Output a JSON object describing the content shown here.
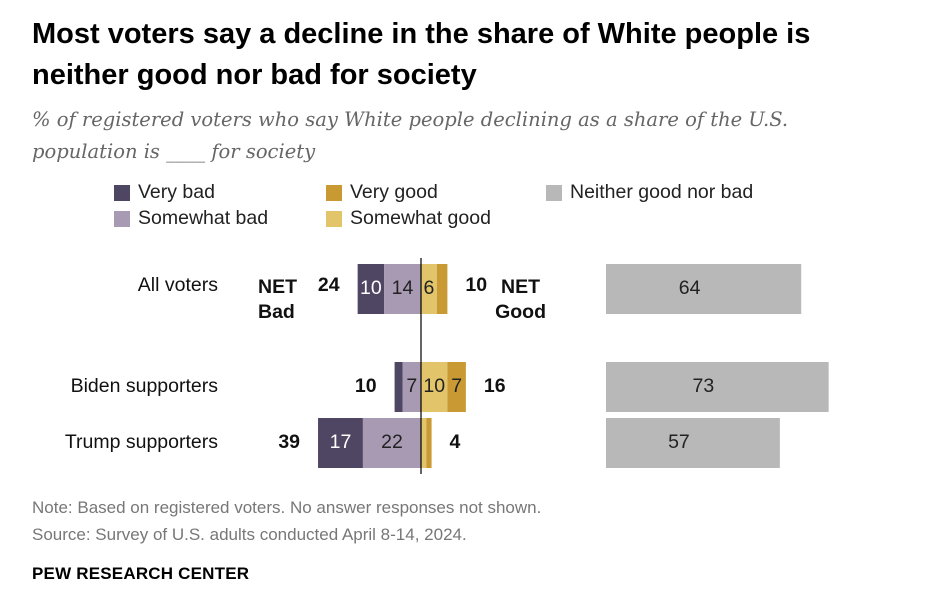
{
  "title": "Most voters say a decline in the share of White people is neither good nor bad for society",
  "subtitle": "% of registered voters who say White people declining as a share of the U.S. population is ____ for society",
  "legend": [
    {
      "label": "Very bad",
      "color": "#4f4663"
    },
    {
      "label": "Very good",
      "color": "#c99a33"
    },
    {
      "label": "Neither good nor bad",
      "color": "#b8b8b8"
    },
    {
      "label": "Somewhat bad",
      "color": "#a89ab3"
    },
    {
      "label": "Somewhat good",
      "color": "#e2c46a"
    }
  ],
  "net_labels": {
    "bad": "NET Bad",
    "good": "NET Good"
  },
  "chart_data": {
    "type": "bar",
    "stacked": "diverging",
    "categories": [
      "All voters",
      "Biden supporters",
      "Trump supporters"
    ],
    "series": [
      {
        "name": "Very bad",
        "values": [
          10,
          3,
          17
        ],
        "color": "#4f4663"
      },
      {
        "name": "Somewhat bad",
        "values": [
          14,
          7,
          22
        ],
        "color": "#a89ab3"
      },
      {
        "name": "Somewhat good",
        "values": [
          6,
          10,
          2
        ],
        "color": "#e2c46a"
      },
      {
        "name": "Very good",
        "values": [
          4,
          7,
          2
        ],
        "color": "#c99a33"
      },
      {
        "name": "Neither good nor bad",
        "values": [
          64,
          73,
          57
        ],
        "color": "#b8b8b8"
      }
    ],
    "segment_labels": [
      [
        "10",
        "14",
        "6",
        "",
        "64"
      ],
      [
        "",
        "7",
        "10",
        "7",
        "73"
      ],
      [
        "17",
        "22",
        "",
        "",
        "57"
      ]
    ],
    "net_bad": [
      24,
      10,
      39
    ],
    "net_good": [
      10,
      16,
      4
    ],
    "legend_position": "top"
  },
  "notes": {
    "note": "Note: Based on registered voters. No answer responses not shown.",
    "source": "Source: Survey of U.S. adults conducted April 8-14, 2024.",
    "org": "PEW RESEARCH CENTER"
  }
}
